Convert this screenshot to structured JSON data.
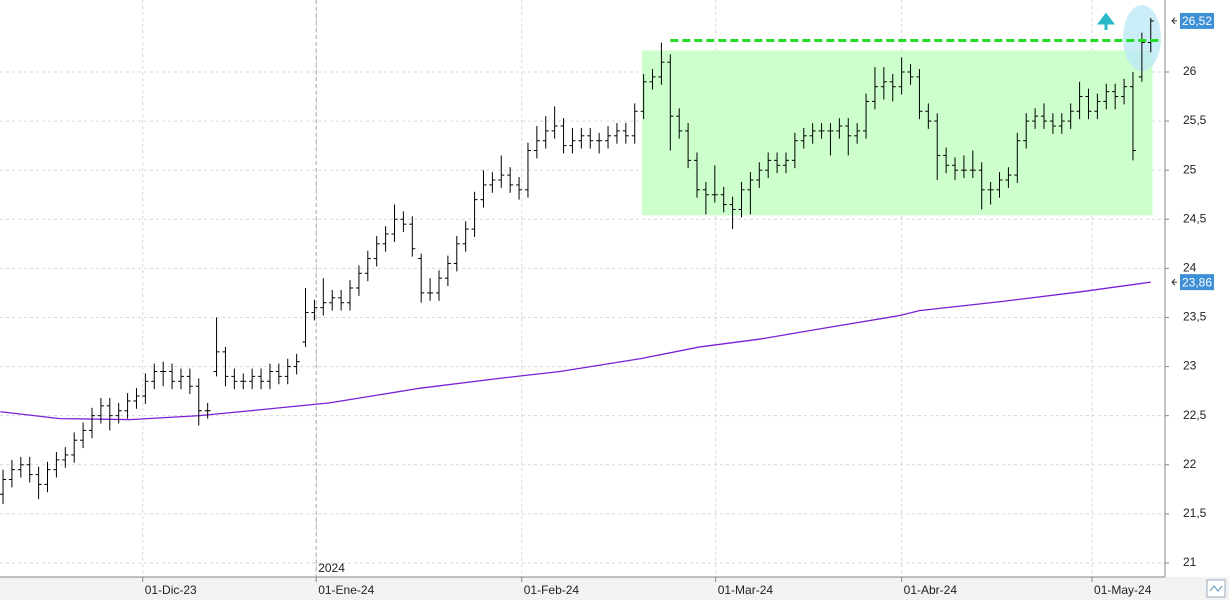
{
  "chart_data": {
    "type": "ohlc",
    "open": [
      21.7,
      21.85,
      21.95,
      22.0,
      21.9,
      21.8,
      21.95,
      22.05,
      22.1,
      22.25,
      22.35,
      22.5,
      22.6,
      22.5,
      22.55,
      22.65,
      22.7,
      22.85,
      22.95,
      22.95,
      22.85,
      22.9,
      22.8,
      22.55,
      22.95,
      23.15,
      22.9,
      22.85,
      22.85,
      22.9,
      22.85,
      22.95,
      22.9,
      23.0,
      23.25,
      23.55,
      23.6,
      23.65,
      23.7,
      23.65,
      23.8,
      23.95,
      24.1,
      24.25,
      24.35,
      24.5,
      24.45,
      24.1,
      23.75,
      23.75,
      23.9,
      24.05,
      24.25,
      24.4,
      24.7,
      24.85,
      24.9,
      24.95,
      24.85,
      24.8,
      25.2,
      25.3,
      25.4,
      25.45,
      25.25,
      25.3,
      25.35,
      25.3,
      25.3,
      25.35,
      25.4,
      25.35,
      25.6,
      25.9,
      25.95,
      26.1,
      25.55,
      25.4,
      25.1,
      24.8,
      24.75,
      24.75,
      24.65,
      24.6,
      24.8,
      24.9,
      25.0,
      25.1,
      25.05,
      25.1,
      25.3,
      25.35,
      25.4,
      25.4,
      25.4,
      25.45,
      25.35,
      25.4,
      25.7,
      25.85,
      25.9,
      25.85,
      26.0,
      25.95,
      25.6,
      25.5,
      25.15,
      25.05,
      25.0,
      25.0,
      25.0,
      24.8,
      24.8,
      24.9,
      24.95,
      25.3,
      25.5,
      25.55,
      25.5,
      25.45,
      25.5,
      25.6,
      25.75,
      25.6,
      25.7,
      25.8,
      25.75,
      25.85,
      25.95,
      26.3
    ],
    "high": [
      21.95,
      22.05,
      22.08,
      22.08,
      21.98,
      22.03,
      22.13,
      22.18,
      22.33,
      22.43,
      22.58,
      22.68,
      22.68,
      22.63,
      22.73,
      22.78,
      22.93,
      23.03,
      23.05,
      23.03,
      22.98,
      22.98,
      22.88,
      22.63,
      23.5,
      23.2,
      22.98,
      22.93,
      22.98,
      22.98,
      23.03,
      23.03,
      23.08,
      23.13,
      23.8,
      23.68,
      23.9,
      23.78,
      23.78,
      23.88,
      24.03,
      24.18,
      24.33,
      24.43,
      24.65,
      24.58,
      24.53,
      24.15,
      23.9,
      23.98,
      24.13,
      24.33,
      24.48,
      24.78,
      25.0,
      24.98,
      25.15,
      25.03,
      24.93,
      25.28,
      25.45,
      25.55,
      25.65,
      25.53,
      25.43,
      25.43,
      25.43,
      25.38,
      25.45,
      25.48,
      25.48,
      25.68,
      25.98,
      26.03,
      26.3,
      26.18,
      25.63,
      25.48,
      25.18,
      24.88,
      25.05,
      24.83,
      24.73,
      24.88,
      24.98,
      25.08,
      25.18,
      25.18,
      25.18,
      25.38,
      25.43,
      25.48,
      25.48,
      25.48,
      25.53,
      25.53,
      25.48,
      25.78,
      26.05,
      26.05,
      25.98,
      26.15,
      26.08,
      26.03,
      25.68,
      25.58,
      25.23,
      25.13,
      25.15,
      25.2,
      25.08,
      24.88,
      24.98,
      25.03,
      25.38,
      25.58,
      25.63,
      25.68,
      25.58,
      25.58,
      25.68,
      25.9,
      25.83,
      25.78,
      25.88,
      25.88,
      25.93,
      26.0,
      26.4,
      26.55
    ],
    "low": [
      21.6,
      21.77,
      21.87,
      21.82,
      21.65,
      21.72,
      21.87,
      21.97,
      22.02,
      22.17,
      22.27,
      22.42,
      22.35,
      22.42,
      22.47,
      22.57,
      22.62,
      22.77,
      22.8,
      22.77,
      22.77,
      22.72,
      22.4,
      22.47,
      22.9,
      22.8,
      22.77,
      22.77,
      22.77,
      22.77,
      22.77,
      22.82,
      22.82,
      22.92,
      23.2,
      23.47,
      23.52,
      23.57,
      23.57,
      23.57,
      23.72,
      23.87,
      24.02,
      24.17,
      24.27,
      24.37,
      24.12,
      23.65,
      23.67,
      23.67,
      23.82,
      23.97,
      24.17,
      24.32,
      24.62,
      24.77,
      24.82,
      24.77,
      24.7,
      24.72,
      25.12,
      25.22,
      25.32,
      25.17,
      25.17,
      25.22,
      25.22,
      25.17,
      25.22,
      25.27,
      25.27,
      25.27,
      25.52,
      25.82,
      25.87,
      25.2,
      25.32,
      25.02,
      24.72,
      24.55,
      24.67,
      24.57,
      24.4,
      24.52,
      24.55,
      24.82,
      24.92,
      24.97,
      24.97,
      25.02,
      25.22,
      25.27,
      25.32,
      25.15,
      25.32,
      25.15,
      25.27,
      25.32,
      25.62,
      25.72,
      25.7,
      25.77,
      25.87,
      25.52,
      25.42,
      24.9,
      24.97,
      24.9,
      24.92,
      24.92,
      24.6,
      24.65,
      24.72,
      24.82,
      24.87,
      25.22,
      25.42,
      25.42,
      25.37,
      25.37,
      25.42,
      25.52,
      25.52,
      25.52,
      25.62,
      25.62,
      25.67,
      25.1,
      25.9,
      26.2
    ],
    "close": [
      21.85,
      21.95,
      22.0,
      21.9,
      21.8,
      21.95,
      22.05,
      22.1,
      22.25,
      22.35,
      22.5,
      22.6,
      22.5,
      22.55,
      22.65,
      22.7,
      22.85,
      22.95,
      22.95,
      22.85,
      22.9,
      22.8,
      22.55,
      22.55,
      23.15,
      22.9,
      22.85,
      22.85,
      22.9,
      22.85,
      22.95,
      22.9,
      23.0,
      23.05,
      23.55,
      23.6,
      23.65,
      23.7,
      23.65,
      23.8,
      23.95,
      24.1,
      24.25,
      24.35,
      24.5,
      24.45,
      24.2,
      23.75,
      23.75,
      23.9,
      24.05,
      24.25,
      24.4,
      24.7,
      24.85,
      24.9,
      24.95,
      24.85,
      24.8,
      25.2,
      25.3,
      25.4,
      25.45,
      25.25,
      25.3,
      25.35,
      25.3,
      25.3,
      25.35,
      25.4,
      25.35,
      25.6,
      25.9,
      25.95,
      26.1,
      25.55,
      25.4,
      25.1,
      24.8,
      24.75,
      24.75,
      24.65,
      24.6,
      24.8,
      24.9,
      25.0,
      25.1,
      25.05,
      25.1,
      25.3,
      25.35,
      25.4,
      25.4,
      25.4,
      25.45,
      25.35,
      25.4,
      25.7,
      25.85,
      25.9,
      25.85,
      26.0,
      25.95,
      25.6,
      25.5,
      25.15,
      25.05,
      25.0,
      25.0,
      25.0,
      24.8,
      24.8,
      24.9,
      24.95,
      25.3,
      25.5,
      25.55,
      25.5,
      25.45,
      25.5,
      25.6,
      25.75,
      25.6,
      25.7,
      25.8,
      25.75,
      25.85,
      25.2,
      26.3,
      26.52
    ],
    "bar_color": "#000000",
    "moving_average": {
      "color": "#7a1fd6",
      "x": [
        -0.3,
        6.4,
        14.3,
        22.1,
        27.8,
        36.7,
        46.9,
        55.8,
        62.6,
        71.6,
        78.3,
        85.1,
        92.9,
        100.8,
        103.0,
        112.0,
        121.0,
        129
      ],
      "values": [
        22.54,
        22.47,
        22.46,
        22.5,
        22.55,
        22.63,
        22.78,
        22.88,
        22.95,
        23.08,
        23.2,
        23.28,
        23.4,
        23.52,
        23.57,
        23.66,
        23.76,
        23.86
      ]
    },
    "range_box": {
      "color": "#ccffcc",
      "x": [
        71.8,
        129.2
      ],
      "values": [
        24.54,
        26.22
      ]
    },
    "resistance": {
      "color": "#22dd22",
      "x": [
        75,
        130
      ],
      "value": 26.32
    },
    "price_labels": [
      {
        "value": 26.52,
        "label": "26,52",
        "color": "#3d8fd6"
      },
      {
        "value": 23.86,
        "label": "23,86",
        "color": "#3d8fd6"
      }
    ],
    "year_marker": {
      "value": 35.2,
      "label": "2024"
    },
    "xlim": [
      -0.34,
      130.6
    ],
    "xticks": [
      {
        "value": 15.7,
        "label": "01-Dic-23"
      },
      {
        "value": 35.2,
        "label": "01-Ene-24"
      },
      {
        "value": 58.3,
        "label": "01-Feb-24"
      },
      {
        "value": 80.1,
        "label": "01-Mar-24"
      },
      {
        "value": 101.0,
        "label": "01-Abr-24"
      },
      {
        "value": 122.4,
        "label": "01-May-24"
      }
    ],
    "ylim": [
      20.857,
      26.733
    ],
    "yticks": [
      21,
      {
        "value": 21.5,
        "label": "21,5"
      },
      22,
      {
        "value": 22.5,
        "label": "22,5"
      },
      23,
      {
        "value": 23.5,
        "label": "23,5"
      },
      24,
      {
        "value": 24.5,
        "label": "24,5"
      },
      25,
      {
        "value": 25.5,
        "label": "25,5"
      },
      26
    ],
    "grid": true
  }
}
